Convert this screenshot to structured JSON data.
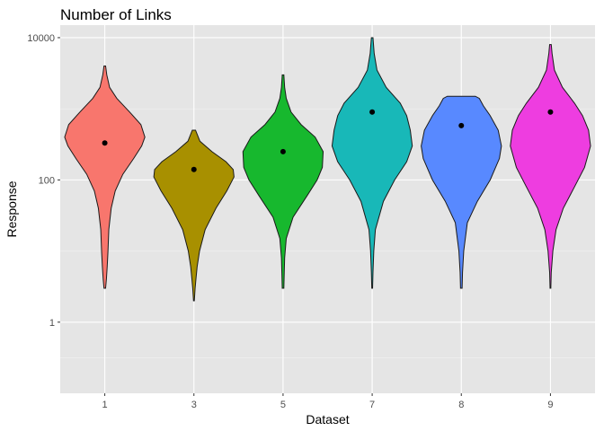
{
  "chart_data": {
    "type": "violin",
    "title": "Number of Links",
    "xlabel": "Dataset",
    "ylabel": "Response",
    "y_scale": "log10",
    "ylim": [
      0.1,
      15000
    ],
    "y_ticks": [
      1,
      100,
      10000
    ],
    "y_tick_labels": [
      "1",
      "100",
      "10000"
    ],
    "grid": true,
    "legend": "none",
    "categories": [
      "1",
      "3",
      "5",
      "7",
      "8",
      "9"
    ],
    "series": [
      {
        "category": "1",
        "color": "#F8766D",
        "mean": 330,
        "min": 3,
        "max": 4000,
        "profile": [
          [
            3,
            0.02
          ],
          [
            4,
            0.04
          ],
          [
            6,
            0.06
          ],
          [
            10,
            0.08
          ],
          [
            20,
            0.1
          ],
          [
            40,
            0.16
          ],
          [
            70,
            0.26
          ],
          [
            120,
            0.45
          ],
          [
            200,
            0.72
          ],
          [
            300,
            0.92
          ],
          [
            400,
            1.0
          ],
          [
            600,
            0.9
          ],
          [
            900,
            0.62
          ],
          [
            1400,
            0.3
          ],
          [
            2000,
            0.12
          ],
          [
            3000,
            0.05
          ],
          [
            4000,
            0.02
          ]
        ]
      },
      {
        "category": "3",
        "color": "#A89000",
        "mean": 140,
        "min": 2,
        "max": 500,
        "profile": [
          [
            2,
            0.01
          ],
          [
            3,
            0.03
          ],
          [
            4,
            0.05
          ],
          [
            6,
            0.08
          ],
          [
            10,
            0.14
          ],
          [
            20,
            0.28
          ],
          [
            40,
            0.55
          ],
          [
            70,
            0.82
          ],
          [
            110,
            1.0
          ],
          [
            140,
            0.98
          ],
          [
            180,
            0.8
          ],
          [
            250,
            0.45
          ],
          [
            350,
            0.15
          ],
          [
            500,
            0.04
          ]
        ]
      },
      {
        "category": "5",
        "color": "#17B82E",
        "mean": 250,
        "min": 3,
        "max": 3000,
        "profile": [
          [
            3,
            0.02
          ],
          [
            5,
            0.03
          ],
          [
            8,
            0.04
          ],
          [
            15,
            0.08
          ],
          [
            30,
            0.25
          ],
          [
            60,
            0.6
          ],
          [
            100,
            0.85
          ],
          [
            150,
            0.98
          ],
          [
            250,
            1.0
          ],
          [
            400,
            0.8
          ],
          [
            600,
            0.45
          ],
          [
            900,
            0.2
          ],
          [
            1400,
            0.08
          ],
          [
            2000,
            0.04
          ],
          [
            3000,
            0.02
          ]
        ]
      },
      {
        "category": "7",
        "color": "#18B8B8",
        "mean": 900,
        "min": 3,
        "max": 10000,
        "profile": [
          [
            3,
            0.01
          ],
          [
            5,
            0.02
          ],
          [
            10,
            0.04
          ],
          [
            20,
            0.08
          ],
          [
            50,
            0.28
          ],
          [
            100,
            0.56
          ],
          [
            180,
            0.86
          ],
          [
            300,
            1.0
          ],
          [
            500,
            0.95
          ],
          [
            800,
            0.86
          ],
          [
            1200,
            0.7
          ],
          [
            2000,
            0.35
          ],
          [
            3500,
            0.12
          ],
          [
            6000,
            0.05
          ],
          [
            10000,
            0.02
          ]
        ]
      },
      {
        "category": "8",
        "color": "#5889FF",
        "mean": 580,
        "min": 3,
        "max": 1500,
        "profile": [
          [
            3,
            0.02
          ],
          [
            5,
            0.03
          ],
          [
            10,
            0.06
          ],
          [
            25,
            0.15
          ],
          [
            50,
            0.4
          ],
          [
            100,
            0.72
          ],
          [
            200,
            0.95
          ],
          [
            300,
            1.0
          ],
          [
            500,
            0.92
          ],
          [
            800,
            0.72
          ],
          [
            1100,
            0.55
          ],
          [
            1400,
            0.45
          ],
          [
            1500,
            0.35
          ]
        ]
      },
      {
        "category": "9",
        "color": "#EE3DE0",
        "mean": 900,
        "min": 3,
        "max": 8000,
        "profile": [
          [
            3,
            0.01
          ],
          [
            5,
            0.02
          ],
          [
            10,
            0.06
          ],
          [
            20,
            0.14
          ],
          [
            40,
            0.32
          ],
          [
            80,
            0.6
          ],
          [
            150,
            0.85
          ],
          [
            300,
            1.0
          ],
          [
            500,
            0.95
          ],
          [
            800,
            0.8
          ],
          [
            1200,
            0.6
          ],
          [
            2000,
            0.3
          ],
          [
            3500,
            0.1
          ],
          [
            6000,
            0.04
          ],
          [
            8000,
            0.02
          ]
        ]
      }
    ]
  }
}
